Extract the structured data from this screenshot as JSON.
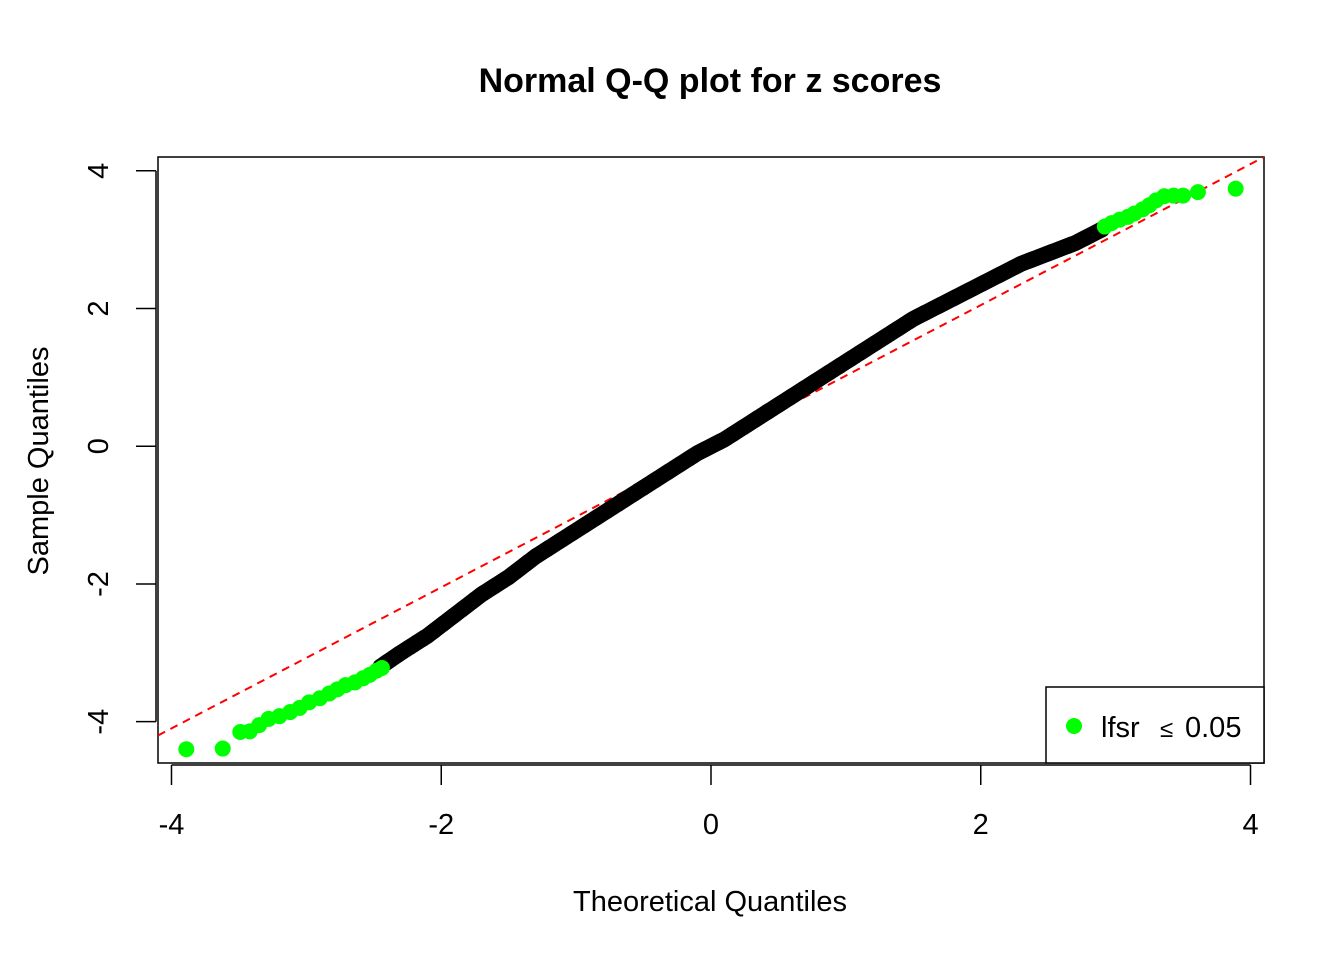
{
  "chart_data": {
    "type": "scatter",
    "title": "Normal Q-Q plot for z scores",
    "xlabel": "Theoretical Quantiles",
    "ylabel": "Sample Quantiles",
    "xlim": [
      -4.1,
      4.1
    ],
    "ylim": [
      -4.6,
      4.2
    ],
    "x_ticks": [
      -4,
      -2,
      0,
      2,
      4
    ],
    "y_ticks": [
      -4,
      -2,
      0,
      2,
      4
    ],
    "x_tick_labels": [
      "-4",
      "-2",
      "0",
      "2",
      "4"
    ],
    "y_tick_labels": [
      "-4",
      "-2",
      "0",
      "2",
      "4"
    ],
    "grid": false,
    "legend": {
      "position": "bottom-right",
      "label": "lfsr",
      "symbol": "≤",
      "threshold": "0.05"
    },
    "reference_line": {
      "x": [
        -4.1,
        4.1
      ],
      "y": [
        -4.2,
        4.2
      ],
      "color": "#ff0000",
      "style": "dashed"
    },
    "series": [
      {
        "color": "#000000",
        "description": "all z scores",
        "x": [
          -2.45,
          -2.3,
          -2.1,
          -1.9,
          -1.7,
          -1.5,
          -1.3,
          -1.1,
          -0.9,
          -0.7,
          -0.5,
          -0.3,
          -0.1,
          0.1,
          0.3,
          0.5,
          0.7,
          0.9,
          1.1,
          1.3,
          1.5,
          1.7,
          1.9,
          2.1,
          2.3,
          2.5,
          2.7,
          2.9
        ],
        "y": [
          -3.2,
          -3.0,
          -2.75,
          -2.45,
          -2.15,
          -1.9,
          -1.6,
          -1.35,
          -1.1,
          -0.85,
          -0.6,
          -0.35,
          -0.1,
          0.1,
          0.35,
          0.6,
          0.85,
          1.1,
          1.35,
          1.6,
          1.85,
          2.05,
          2.25,
          2.45,
          2.65,
          2.8,
          2.95,
          3.15
        ]
      },
      {
        "color": "#00ff00",
        "description": "lfsr ≤ 0.05",
        "x": [
          -3.89,
          -3.62,
          -3.49,
          -3.42,
          -3.35,
          -3.28,
          -3.2,
          -3.12,
          -3.05,
          -2.98,
          -2.9,
          -2.83,
          -2.77,
          -2.71,
          -2.64,
          -2.58,
          -2.53,
          -2.48,
          -2.44,
          2.92,
          2.97,
          3.03,
          3.09,
          3.14,
          3.2,
          3.25,
          3.3,
          3.36,
          3.43,
          3.5,
          3.61,
          3.89
        ],
        "y": [
          -4.4,
          -4.39,
          -4.15,
          -4.14,
          -4.05,
          -3.96,
          -3.92,
          -3.86,
          -3.8,
          -3.72,
          -3.66,
          -3.59,
          -3.53,
          -3.47,
          -3.43,
          -3.37,
          -3.32,
          -3.26,
          -3.22,
          3.19,
          3.24,
          3.29,
          3.33,
          3.38,
          3.44,
          3.5,
          3.57,
          3.63,
          3.64,
          3.64,
          3.69,
          3.74
        ]
      }
    ]
  }
}
